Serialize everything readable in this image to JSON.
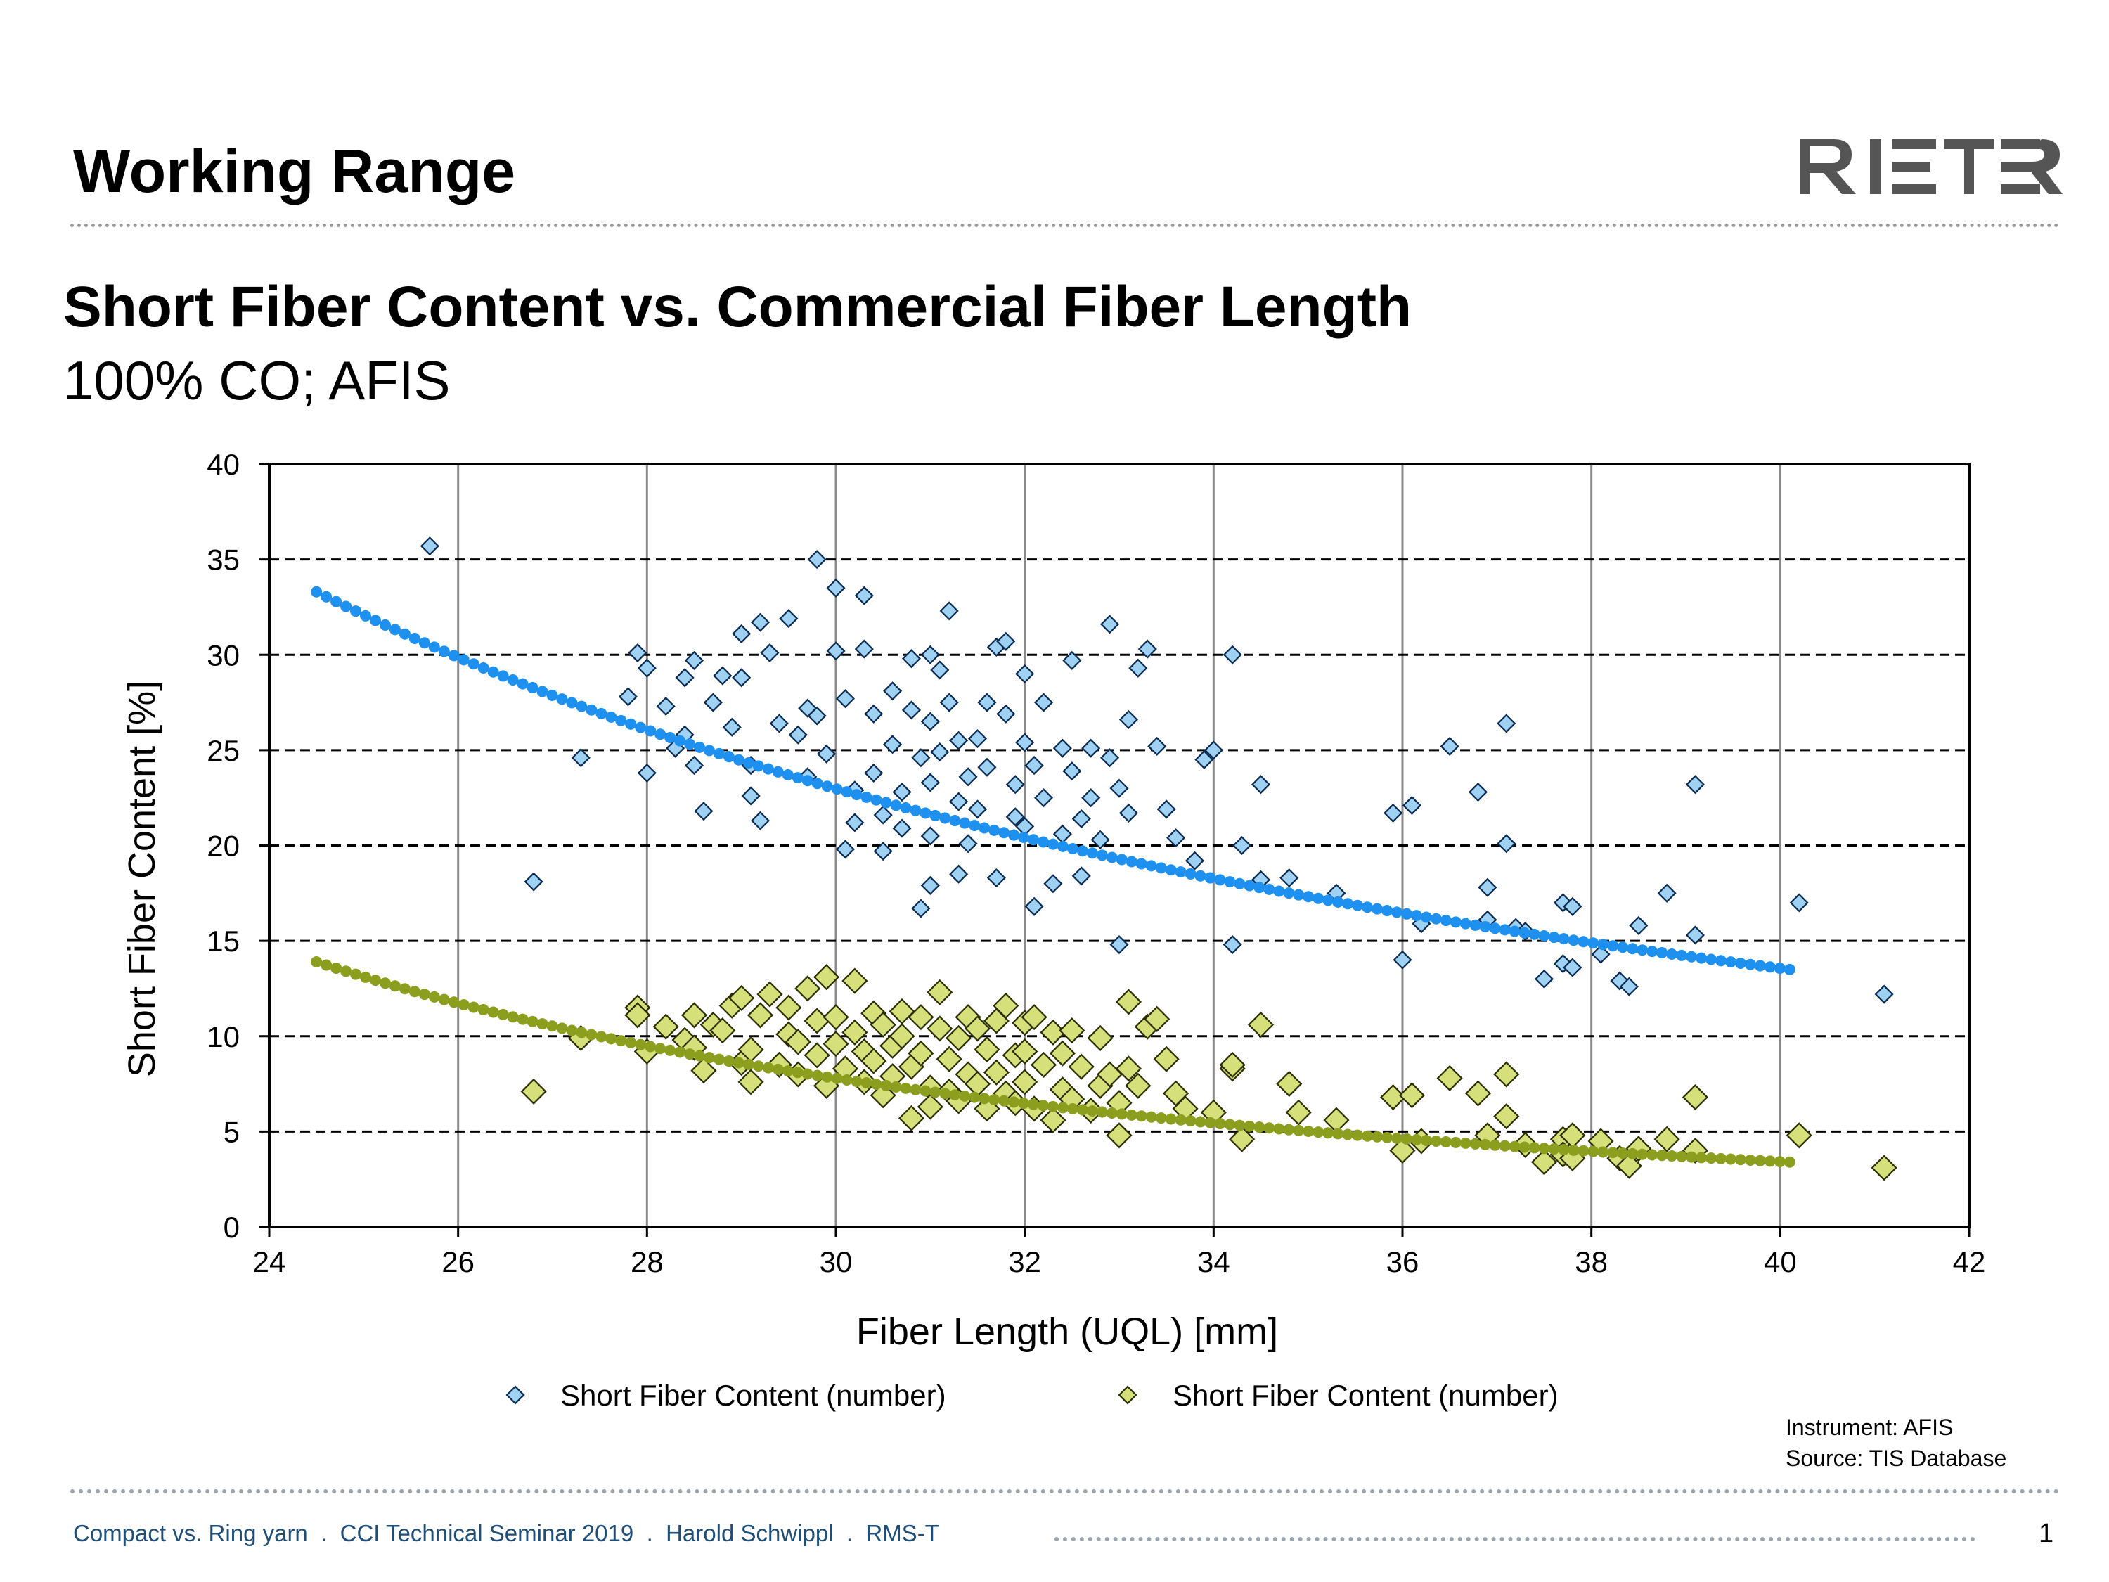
{
  "header": {
    "title": "Working Range",
    "logo_text": "RIETER"
  },
  "chart_data": {
    "type": "scatter",
    "title": "Short Fiber Content vs. Commercial Fiber Length",
    "subtitle": "100% CO; AFIS",
    "xlabel": "Fiber Length (UQL) [mm]",
    "ylabel": "Short Fiber Content [%]",
    "xlim": [
      24,
      42
    ],
    "ylim": [
      0,
      40
    ],
    "x_ticks": [
      24,
      26,
      28,
      30,
      32,
      34,
      36,
      38,
      40,
      42
    ],
    "y_ticks": [
      0,
      5,
      10,
      15,
      20,
      25,
      30,
      35,
      40
    ],
    "x_grid": "solid vertical gridlines",
    "y_grid": "dashed horizontal gridlines",
    "legend_position": "bottom",
    "series": [
      {
        "name": "Short Fiber Content (number)",
        "color": "#9fd1f2",
        "stroke": "#0a2a50",
        "marker": "diamond-small",
        "points": [
          [
            25.7,
            35.7
          ],
          [
            26.8,
            18.1
          ],
          [
            27.3,
            24.6
          ],
          [
            27.8,
            27.8
          ],
          [
            27.9,
            30.1
          ],
          [
            28.0,
            29.3
          ],
          [
            28.0,
            23.8
          ],
          [
            28.2,
            27.3
          ],
          [
            28.3,
            25.1
          ],
          [
            28.4,
            25.8
          ],
          [
            28.4,
            28.8
          ],
          [
            28.5,
            29.7
          ],
          [
            28.5,
            24.2
          ],
          [
            28.6,
            21.8
          ],
          [
            28.7,
            27.5
          ],
          [
            28.8,
            28.9
          ],
          [
            28.9,
            26.2
          ],
          [
            29.0,
            31.1
          ],
          [
            29.0,
            28.8
          ],
          [
            29.1,
            24.2
          ],
          [
            29.1,
            22.6
          ],
          [
            29.2,
            21.3
          ],
          [
            29.2,
            31.7
          ],
          [
            29.3,
            30.1
          ],
          [
            29.4,
            26.4
          ],
          [
            29.5,
            31.9
          ],
          [
            29.6,
            25.8
          ],
          [
            29.7,
            27.2
          ],
          [
            29.7,
            23.6
          ],
          [
            29.8,
            35.0
          ],
          [
            29.8,
            26.8
          ],
          [
            29.9,
            24.8
          ],
          [
            30.0,
            33.5
          ],
          [
            30.0,
            30.2
          ],
          [
            30.1,
            27.7
          ],
          [
            30.1,
            19.8
          ],
          [
            30.2,
            22.9
          ],
          [
            30.2,
            21.2
          ],
          [
            30.3,
            33.1
          ],
          [
            30.3,
            30.3
          ],
          [
            30.4,
            26.9
          ],
          [
            30.4,
            23.8
          ],
          [
            30.5,
            21.6
          ],
          [
            30.5,
            19.7
          ],
          [
            30.6,
            28.1
          ],
          [
            30.6,
            25.3
          ],
          [
            30.7,
            22.8
          ],
          [
            30.7,
            20.9
          ],
          [
            30.8,
            29.8
          ],
          [
            30.8,
            27.1
          ],
          [
            30.9,
            24.6
          ],
          [
            30.9,
            16.7
          ],
          [
            31.0,
            30.0
          ],
          [
            31.0,
            26.5
          ],
          [
            31.0,
            23.3
          ],
          [
            31.0,
            20.5
          ],
          [
            31.0,
            17.9
          ],
          [
            31.1,
            29.2
          ],
          [
            31.1,
            24.9
          ],
          [
            31.2,
            32.3
          ],
          [
            31.2,
            27.5
          ],
          [
            31.3,
            25.5
          ],
          [
            31.3,
            22.3
          ],
          [
            31.3,
            18.5
          ],
          [
            31.4,
            23.6
          ],
          [
            31.4,
            20.1
          ],
          [
            31.5,
            25.6
          ],
          [
            31.5,
            21.9
          ],
          [
            31.6,
            27.5
          ],
          [
            31.6,
            24.1
          ],
          [
            31.7,
            30.4
          ],
          [
            31.7,
            18.3
          ],
          [
            31.8,
            30.7
          ],
          [
            31.8,
            26.9
          ],
          [
            31.9,
            23.2
          ],
          [
            31.9,
            21.5
          ],
          [
            32.0,
            29.0
          ],
          [
            32.0,
            25.4
          ],
          [
            32.0,
            21.0
          ],
          [
            32.1,
            24.2
          ],
          [
            32.1,
            16.8
          ],
          [
            32.2,
            27.5
          ],
          [
            32.2,
            22.5
          ],
          [
            32.3,
            18.0
          ],
          [
            32.4,
            25.1
          ],
          [
            32.4,
            20.6
          ],
          [
            32.5,
            29.7
          ],
          [
            32.5,
            23.9
          ],
          [
            32.6,
            21.4
          ],
          [
            32.6,
            18.4
          ],
          [
            32.7,
            25.1
          ],
          [
            32.7,
            22.5
          ],
          [
            32.8,
            20.3
          ],
          [
            32.9,
            31.6
          ],
          [
            32.9,
            24.6
          ],
          [
            33.0,
            23.0
          ],
          [
            33.0,
            14.8
          ],
          [
            33.1,
            26.6
          ],
          [
            33.1,
            21.7
          ],
          [
            33.2,
            29.3
          ],
          [
            33.3,
            30.3
          ],
          [
            33.4,
            25.2
          ],
          [
            33.5,
            21.9
          ],
          [
            33.6,
            20.4
          ],
          [
            33.8,
            19.2
          ],
          [
            33.9,
            24.5
          ],
          [
            34.0,
            25.0
          ],
          [
            34.2,
            14.8
          ],
          [
            34.2,
            30.0
          ],
          [
            34.3,
            20.0
          ],
          [
            34.5,
            23.2
          ],
          [
            34.5,
            18.2
          ],
          [
            34.8,
            18.3
          ],
          [
            35.3,
            17.5
          ],
          [
            35.9,
            21.7
          ],
          [
            36.0,
            14.0
          ],
          [
            36.1,
            22.1
          ],
          [
            36.2,
            15.9
          ],
          [
            36.5,
            25.2
          ],
          [
            36.8,
            22.8
          ],
          [
            36.9,
            17.8
          ],
          [
            36.9,
            16.1
          ],
          [
            37.1,
            20.1
          ],
          [
            37.1,
            26.4
          ],
          [
            37.2,
            15.7
          ],
          [
            37.3,
            15.5
          ],
          [
            37.5,
            13.0
          ],
          [
            37.7,
            17.0
          ],
          [
            37.7,
            13.8
          ],
          [
            37.8,
            16.8
          ],
          [
            37.8,
            13.6
          ],
          [
            38.1,
            14.3
          ],
          [
            38.3,
            12.9
          ],
          [
            38.4,
            12.6
          ],
          [
            38.5,
            15.8
          ],
          [
            38.8,
            17.5
          ],
          [
            39.1,
            23.2
          ],
          [
            39.1,
            15.3
          ],
          [
            40.2,
            17.0
          ],
          [
            41.1,
            12.2
          ]
        ]
      },
      {
        "name": "Short Fiber Content (number)",
        "color": "#d6e07a",
        "stroke": "#2a2e00",
        "marker": "diamond-large",
        "points": [
          [
            26.8,
            7.1
          ],
          [
            27.3,
            9.9
          ],
          [
            27.9,
            11.5
          ],
          [
            27.9,
            11.1
          ],
          [
            28.0,
            9.2
          ],
          [
            28.2,
            10.5
          ],
          [
            28.4,
            9.8
          ],
          [
            28.5,
            9.4
          ],
          [
            28.5,
            11.1
          ],
          [
            28.6,
            8.2
          ],
          [
            28.7,
            10.6
          ],
          [
            28.8,
            10.3
          ],
          [
            28.9,
            11.6
          ],
          [
            29.0,
            8.6
          ],
          [
            29.0,
            12.0
          ],
          [
            29.1,
            9.3
          ],
          [
            29.1,
            7.6
          ],
          [
            29.2,
            11.1
          ],
          [
            29.3,
            12.2
          ],
          [
            29.4,
            8.5
          ],
          [
            29.5,
            10.1
          ],
          [
            29.5,
            11.5
          ],
          [
            29.6,
            9.7
          ],
          [
            29.6,
            8.0
          ],
          [
            29.7,
            12.5
          ],
          [
            29.8,
            10.8
          ],
          [
            29.8,
            9.0
          ],
          [
            29.9,
            13.1
          ],
          [
            29.9,
            7.4
          ],
          [
            30.0,
            11.0
          ],
          [
            30.0,
            9.6
          ],
          [
            30.1,
            8.3
          ],
          [
            30.2,
            12.9
          ],
          [
            30.2,
            10.2
          ],
          [
            30.3,
            9.2
          ],
          [
            30.3,
            7.6
          ],
          [
            30.4,
            11.2
          ],
          [
            30.4,
            8.7
          ],
          [
            30.5,
            10.6
          ],
          [
            30.5,
            6.9
          ],
          [
            30.6,
            9.5
          ],
          [
            30.6,
            7.9
          ],
          [
            30.7,
            11.3
          ],
          [
            30.7,
            10.0
          ],
          [
            30.8,
            8.4
          ],
          [
            30.8,
            5.7
          ],
          [
            30.9,
            11.0
          ],
          [
            30.9,
            9.1
          ],
          [
            31.0,
            7.3
          ],
          [
            31.0,
            6.3
          ],
          [
            31.1,
            12.3
          ],
          [
            31.1,
            10.4
          ],
          [
            31.2,
            8.8
          ],
          [
            31.2,
            7.1
          ],
          [
            31.3,
            9.9
          ],
          [
            31.3,
            6.6
          ],
          [
            31.4,
            11.0
          ],
          [
            31.4,
            8.0
          ],
          [
            31.5,
            10.4
          ],
          [
            31.5,
            7.5
          ],
          [
            31.6,
            9.3
          ],
          [
            31.6,
            6.2
          ],
          [
            31.7,
            10.8
          ],
          [
            31.7,
            8.1
          ],
          [
            31.8,
            11.6
          ],
          [
            31.8,
            7.0
          ],
          [
            31.9,
            9.0
          ],
          [
            31.9,
            6.5
          ],
          [
            32.0,
            10.7
          ],
          [
            32.0,
            9.2
          ],
          [
            32.0,
            7.6
          ],
          [
            32.1,
            6.2
          ],
          [
            32.1,
            11.0
          ],
          [
            32.2,
            8.5
          ],
          [
            32.3,
            10.2
          ],
          [
            32.3,
            5.6
          ],
          [
            32.4,
            9.1
          ],
          [
            32.4,
            7.2
          ],
          [
            32.5,
            6.7
          ],
          [
            32.5,
            10.3
          ],
          [
            32.6,
            8.4
          ],
          [
            32.7,
            6.1
          ],
          [
            32.8,
            9.9
          ],
          [
            32.8,
            7.4
          ],
          [
            32.9,
            8.0
          ],
          [
            33.0,
            6.5
          ],
          [
            33.0,
            4.8
          ],
          [
            33.1,
            11.8
          ],
          [
            33.1,
            8.3
          ],
          [
            33.2,
            7.4
          ],
          [
            33.3,
            10.5
          ],
          [
            33.4,
            10.9
          ],
          [
            33.5,
            8.8
          ],
          [
            33.6,
            7.0
          ],
          [
            33.7,
            6.2
          ],
          [
            34.0,
            6.0
          ],
          [
            34.2,
            8.3
          ],
          [
            34.2,
            8.5
          ],
          [
            34.3,
            4.6
          ],
          [
            34.5,
            10.6
          ],
          [
            34.8,
            7.5
          ],
          [
            34.9,
            6.0
          ],
          [
            35.3,
            5.6
          ],
          [
            35.9,
            6.8
          ],
          [
            36.0,
            4.0
          ],
          [
            36.1,
            6.9
          ],
          [
            36.2,
            4.5
          ],
          [
            36.5,
            7.8
          ],
          [
            36.8,
            7.0
          ],
          [
            36.9,
            4.8
          ],
          [
            37.1,
            8.0
          ],
          [
            37.1,
            5.8
          ],
          [
            37.3,
            4.3
          ],
          [
            37.5,
            3.4
          ],
          [
            37.7,
            4.6
          ],
          [
            37.7,
            3.8
          ],
          [
            37.8,
            4.8
          ],
          [
            37.8,
            3.6
          ],
          [
            38.1,
            4.5
          ],
          [
            38.3,
            3.6
          ],
          [
            38.4,
            3.2
          ],
          [
            38.5,
            4.1
          ],
          [
            38.8,
            4.6
          ],
          [
            39.1,
            6.8
          ],
          [
            39.1,
            4.0
          ],
          [
            40.2,
            4.8
          ],
          [
            41.1,
            3.1
          ]
        ]
      }
    ],
    "trendlines": [
      {
        "color": "#1e90f0",
        "x_range": [
          24.5,
          40.1
        ],
        "y_at_start": 33.3,
        "y_at_end": 13.5
      },
      {
        "color": "#8c9e1e",
        "x_range": [
          24.5,
          40.1
        ],
        "y_at_start": 13.9,
        "y_at_end": 3.4
      }
    ],
    "notes": [
      "Instrument: AFIS",
      "Source: TIS Database"
    ]
  },
  "footer": {
    "text": "Compact vs. Ring yarn  .  CCI Technical Seminar 2019  .  Harold Schwippl  .  RMS-T",
    "page_number": "1"
  }
}
